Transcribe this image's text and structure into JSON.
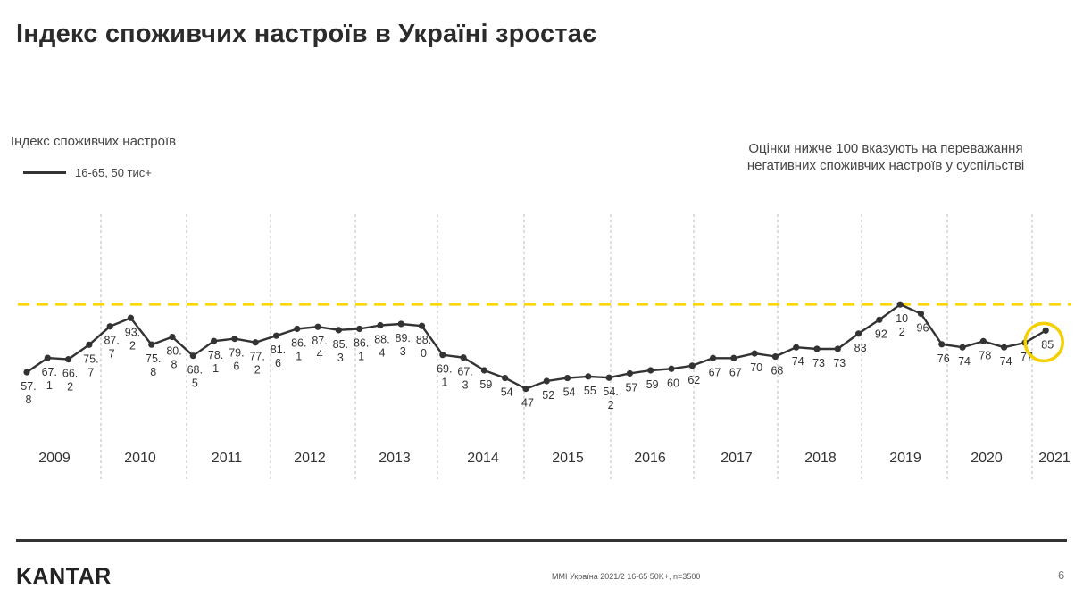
{
  "page": {
    "title": "Індекс споживчих настроїв в Україні зростає",
    "note": "Оцінки нижче 100 вказують на переважання негативних споживчих настроїв у суспільстві",
    "logo": "KANTAR",
    "source": "MMI Україна 2021/2 16-65 50K+, n=3500",
    "page_number": "6"
  },
  "colors": {
    "line": "#333333",
    "threshold": "#FFD700",
    "highlight": "#F5D000",
    "grid": "#bbbbbb"
  },
  "chart_data": {
    "type": "line",
    "title": "Індекс споживчих настроїв",
    "legend": [
      "16-65, 50 тис+"
    ],
    "reference_line": 102,
    "years": [
      "2009",
      "2010",
      "2011",
      "2012",
      "2013",
      "2014",
      "2015",
      "2016",
      "2017",
      "2018",
      "2019",
      "2020",
      "2021"
    ],
    "series": [
      {
        "name": "16-65, 50 тис+",
        "labels": [
          "57.8",
          "67.1",
          "66.2",
          "75.7",
          "87.7",
          "93.2",
          "75.8",
          "80.8",
          "68.5",
          "78.1",
          "79.6",
          "77.2",
          "81.6",
          "86.1",
          "87.4",
          "85.3",
          "86.1",
          "88.4",
          "89.3",
          "88.0",
          "69.1",
          "67.3",
          "59",
          "54",
          "47",
          "52",
          "54",
          "55",
          "54.2",
          "57",
          "59",
          "60",
          "62",
          "67",
          "67",
          "70",
          "68",
          "74",
          "73",
          "73",
          "83",
          "92",
          "102",
          "96",
          "76",
          "74",
          "78",
          "74",
          "77",
          "85"
        ],
        "values": [
          57.8,
          67.1,
          66.2,
          75.7,
          87.7,
          93.2,
          75.8,
          80.8,
          68.5,
          78.1,
          79.6,
          77.2,
          81.6,
          86.1,
          87.4,
          85.3,
          86.1,
          88.4,
          89.3,
          88.0,
          69.1,
          67.3,
          59,
          54,
          47,
          52,
          54,
          55,
          54.2,
          57,
          59,
          60,
          62,
          67,
          67,
          70,
          68,
          74,
          73,
          73,
          83,
          92,
          102,
          96,
          76,
          74,
          78,
          74,
          77,
          85
        ]
      }
    ]
  }
}
